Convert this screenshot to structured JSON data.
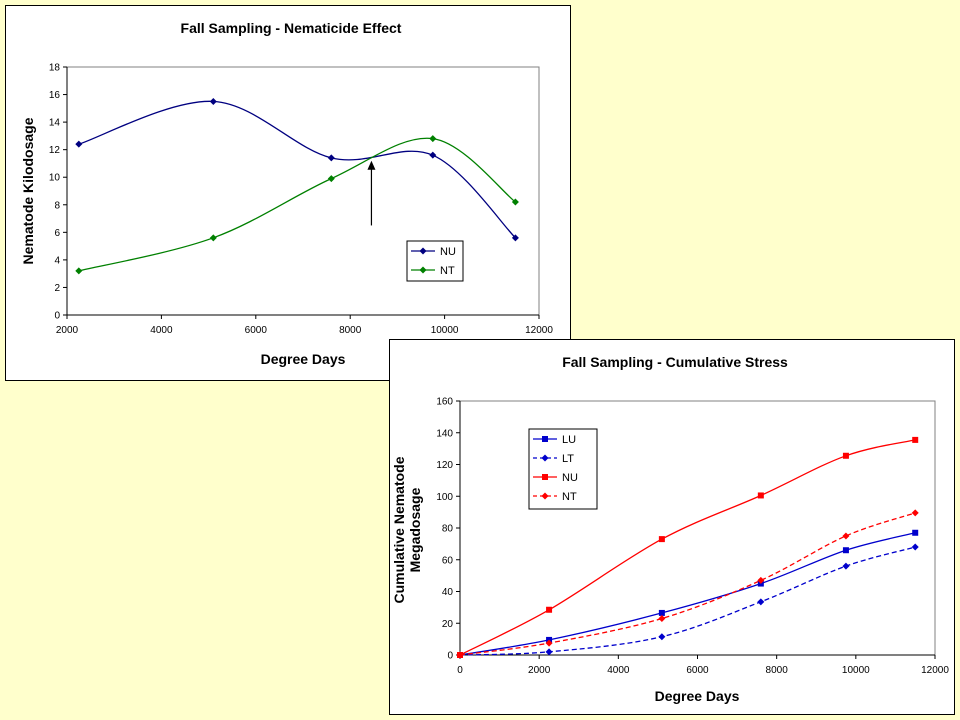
{
  "chart_data": [
    {
      "type": "line",
      "title": "Fall Sampling - Nematicide Effect",
      "xlabel": "Degree Days",
      "ylabel": "Nematode Kilodosage",
      "xlim": [
        2000,
        12000
      ],
      "ylim": [
        0,
        18
      ],
      "xticks": [
        2000,
        4000,
        6000,
        8000,
        10000,
        12000
      ],
      "yticks": [
        0,
        2,
        4,
        6,
        8,
        10,
        12,
        14,
        16,
        18
      ],
      "legend_position": "lower-right",
      "annotations": [
        {
          "type": "arrow",
          "from": [
            8450,
            6.5
          ],
          "to": [
            8450,
            11.2
          ]
        }
      ],
      "series": [
        {
          "name": "NU",
          "color": "#000080",
          "marker": "diamond",
          "dash": "solid",
          "x": [
            2250,
            5100,
            7600,
            9750,
            11500
          ],
          "y": [
            12.4,
            15.5,
            11.4,
            11.6,
            5.6
          ]
        },
        {
          "name": "NT",
          "color": "#008000",
          "marker": "diamond",
          "dash": "solid",
          "x": [
            2250,
            5100,
            7600,
            9750,
            11500
          ],
          "y": [
            3.2,
            5.6,
            9.9,
            12.8,
            8.2
          ]
        }
      ]
    },
    {
      "type": "line",
      "title": "Fall Sampling - Cumulative Stress",
      "xlabel": "Degree Days",
      "ylabel": "Cumulative Nematode Megadosage",
      "ylabel_lines": [
        "Cumulative Nematode",
        "Megadosage"
      ],
      "xlim": [
        0,
        12000
      ],
      "ylim": [
        0,
        160
      ],
      "xticks": [
        0,
        2000,
        4000,
        6000,
        8000,
        10000,
        12000
      ],
      "yticks": [
        0,
        20,
        40,
        60,
        80,
        100,
        120,
        140,
        160
      ],
      "legend_position": "top-left",
      "series": [
        {
          "name": "LU",
          "color": "#0000cc",
          "marker": "square",
          "dash": "solid",
          "x": [
            0,
            2250,
            5100,
            7600,
            9750,
            11500
          ],
          "y": [
            0,
            9.5,
            26.5,
            45,
            66,
            77
          ]
        },
        {
          "name": "LT",
          "color": "#0000cc",
          "marker": "diamond",
          "dash": "dashed",
          "x": [
            0,
            2250,
            5100,
            7600,
            9750,
            11500
          ],
          "y": [
            0,
            2,
            11.5,
            33.5,
            56,
            68
          ]
        },
        {
          "name": "NU",
          "color": "#ff0000",
          "marker": "square",
          "dash": "solid",
          "x": [
            0,
            2250,
            5100,
            7600,
            9750,
            11500
          ],
          "y": [
            0,
            28.5,
            73,
            100.5,
            125.5,
            135.5
          ]
        },
        {
          "name": "NT",
          "color": "#ff0000",
          "marker": "diamond",
          "dash": "dashed",
          "x": [
            0,
            2250,
            5100,
            7600,
            9750,
            11500
          ],
          "y": [
            0,
            7.5,
            23,
            47,
            75,
            89.5
          ]
        }
      ]
    }
  ]
}
